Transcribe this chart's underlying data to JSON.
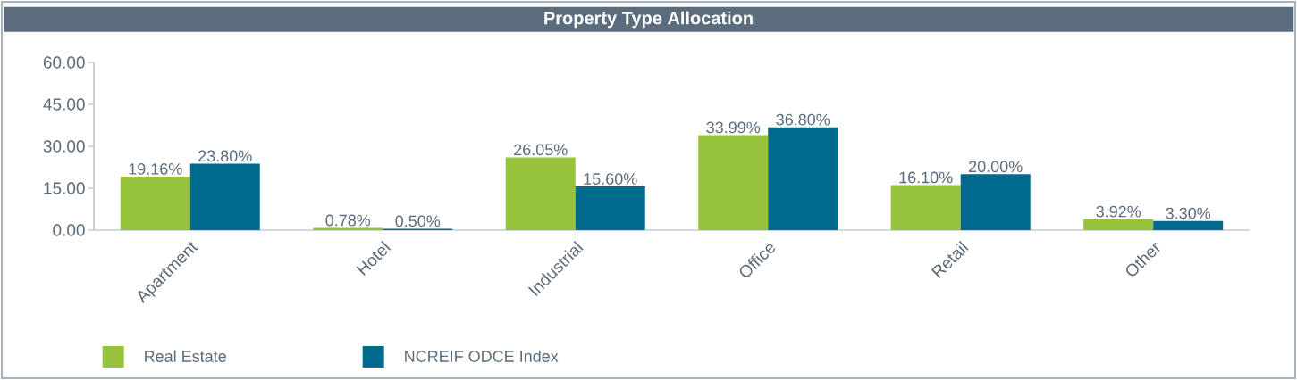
{
  "chart_data": {
    "type": "bar",
    "title": "Property Type Allocation",
    "categories": [
      "Apartment",
      "Hotel",
      "Industrial",
      "Office",
      "Retail",
      "Other"
    ],
    "series": [
      {
        "name": "Real Estate",
        "color": "#97c23c",
        "values": [
          19.16,
          0.78,
          26.05,
          33.99,
          16.1,
          3.92
        ],
        "value_labels": [
          "19.16%",
          "0.78%",
          "26.05%",
          "33.99%",
          "16.10%",
          "3.92%"
        ]
      },
      {
        "name": "NCREIF ODCE Index",
        "color": "#006a8e",
        "values": [
          23.8,
          0.5,
          15.6,
          36.8,
          20.0,
          3.3
        ],
        "value_labels": [
          "23.80%",
          "0.50%",
          "15.60%",
          "36.80%",
          "20.00%",
          "3.30%"
        ]
      }
    ],
    "ylim": [
      0,
      60
    ],
    "yticks": [
      {
        "value": 0,
        "label": "0.00"
      },
      {
        "value": 15,
        "label": "15.00"
      },
      {
        "value": 30,
        "label": "30.00"
      },
      {
        "value": 45,
        "label": "45.00"
      },
      {
        "value": 60,
        "label": "60.00"
      }
    ],
    "legend": "bottom left"
  }
}
